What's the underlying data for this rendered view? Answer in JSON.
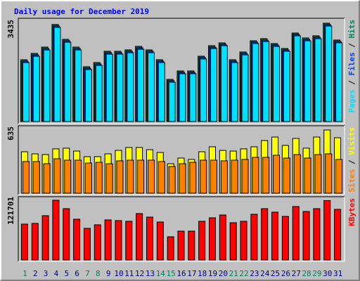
{
  "title": "Daily usage for December 2019",
  "legend_separator": " / ",
  "chart_data": [
    {
      "type": "bar",
      "ylim": [
        0,
        3435
      ],
      "yticks": [
        3435
      ],
      "series": [
        {
          "name": "Hits",
          "color": "#00805c",
          "values": [
            2159,
            2380,
            2601,
            3390,
            2871,
            2601,
            1914,
            2061,
            2454,
            2454,
            2503,
            2626,
            2503,
            2159,
            1472,
            1767,
            1767,
            2282,
            2650,
            2748,
            2159,
            2429,
            2822,
            2896,
            2724,
            2552,
            3092,
            2920,
            2994,
            3435,
            2847
          ]
        },
        {
          "name": "Files",
          "color": "#0040ff",
          "values": [
            2110,
            2330,
            2550,
            3340,
            2820,
            2550,
            1865,
            2010,
            2405,
            2405,
            2455,
            2575,
            2455,
            2110,
            1425,
            1720,
            1720,
            2235,
            2600,
            2700,
            2110,
            2380,
            2775,
            2845,
            2675,
            2505,
            3045,
            2870,
            2945,
            3385,
            2800
          ]
        },
        {
          "name": "Pages",
          "color": "#00e0ff",
          "values": [
            2060,
            2280,
            2500,
            3290,
            2770,
            2500,
            1815,
            1960,
            2355,
            2355,
            2405,
            2525,
            2405,
            2060,
            1375,
            1670,
            1670,
            2185,
            2550,
            2650,
            2060,
            2330,
            2725,
            2795,
            2625,
            2455,
            2995,
            2820,
            2895,
            3335,
            2750
          ]
        }
      ]
    },
    {
      "type": "bar",
      "ylim": [
        0,
        635
      ],
      "yticks": [
        635
      ],
      "series": [
        {
          "name": "Visits",
          "color": "#ffff00",
          "values": [
            416,
            395,
            388,
            445,
            452,
            423,
            367,
            367,
            395,
            430,
            459,
            459,
            437,
            409,
            296,
            353,
            339,
            416,
            466,
            430,
            423,
            445,
            466,
            529,
            564,
            480,
            550,
            452,
            564,
            635,
            557
          ]
        },
        {
          "name": "Sites",
          "color": "#ff8000",
          "values": [
            318,
            318,
            296,
            346,
            332,
            332,
            303,
            310,
            296,
            325,
            332,
            332,
            332,
            318,
            268,
            296,
            310,
            332,
            332,
            325,
            332,
            339,
            360,
            360,
            381,
            353,
            388,
            353,
            388,
            395,
            339
          ]
        }
      ]
    },
    {
      "type": "bar",
      "ylim": [
        0,
        121701
      ],
      "yticks": [
        121701
      ],
      "categories": [
        "1",
        "2",
        "3",
        "4",
        "5",
        "6",
        "7",
        "8",
        "9",
        "10",
        "11",
        "12",
        "13",
        "14",
        "15",
        "16",
        "17",
        "18",
        "19",
        "20",
        "21",
        "22",
        "23",
        "24",
        "25",
        "26",
        "27",
        "28",
        "29",
        "30",
        "31"
      ],
      "category_colors": [
        "#00805c",
        "#000080",
        "#000080",
        "#000080",
        "#000080",
        "#000080",
        "#00805c",
        "#00805c",
        "#000080",
        "#000080",
        "#000080",
        "#000080",
        "#000080",
        "#00805c",
        "#00805c",
        "#000080",
        "#000080",
        "#000080",
        "#000080",
        "#000080",
        "#00805c",
        "#00805c",
        "#000080",
        "#000080",
        "#000080",
        "#000080",
        "#000080",
        "#00805c",
        "#00805c",
        "#000080",
        "#000080"
      ],
      "series": [
        {
          "name": "KBytes",
          "color": "#ff0000",
          "values": [
            73022,
            74454,
            90203,
            121701,
            104521,
            83044,
            64431,
            71590,
            81613,
            80180,
            78749,
            94499,
            87340,
            77317,
            47249,
            58704,
            58704,
            78749,
            85908,
            91635,
            75885,
            78749,
            93067,
            104521,
            97362,
            88772,
            108817,
            98794,
            104521,
            121000,
            103090
          ]
        }
      ]
    }
  ]
}
